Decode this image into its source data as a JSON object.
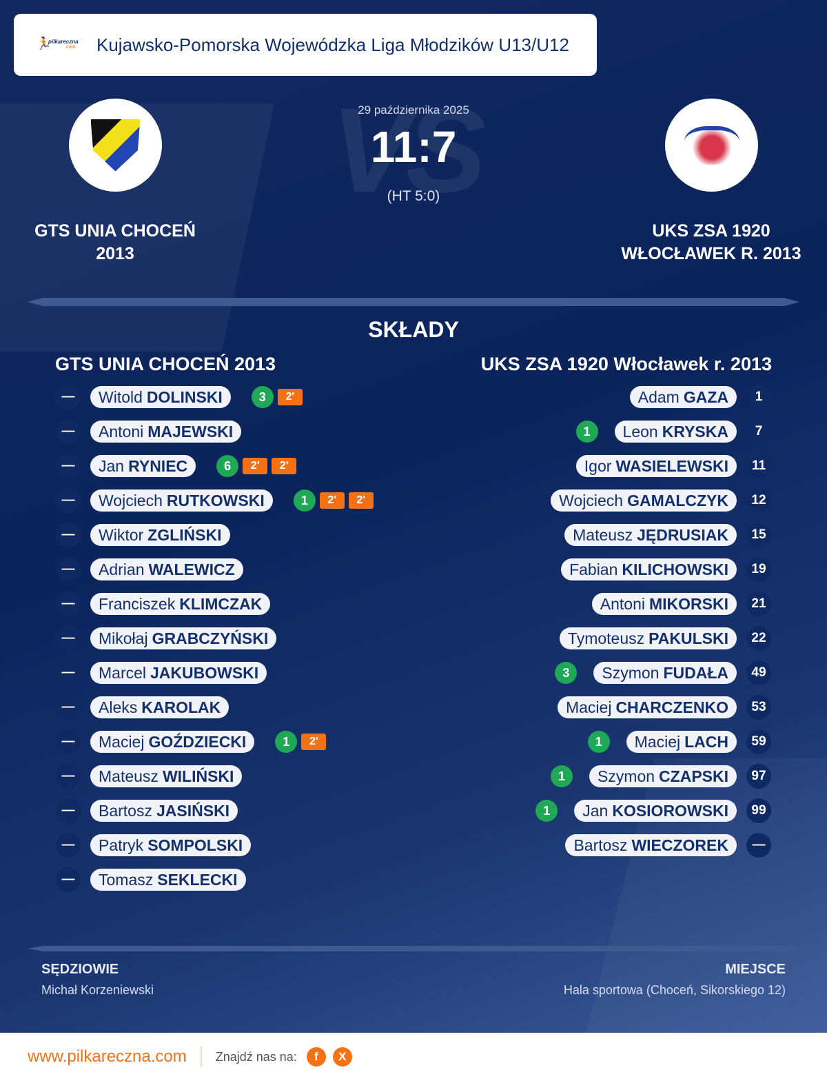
{
  "header": {
    "title": "Kujawsko-Pomorska Wojewódzka Liga Młodzików U13/U12",
    "logo_text": "pilkareczna",
    "logo_sub": ".com"
  },
  "match": {
    "date": "29 października 2025",
    "score": "11:7",
    "halftime": "(HT 5:0)",
    "vs": "VS"
  },
  "home": {
    "name_line1": "GTS UNIA CHOCEŃ",
    "name_line2": "2013",
    "squad_title": "GTS UNIA CHOCEŃ 2013",
    "players": [
      {
        "num": "—",
        "first": "Witold",
        "last": "DOLINSKI",
        "goals": "3",
        "pens": [
          "2'"
        ]
      },
      {
        "num": "—",
        "first": "Antoni",
        "last": "MAJEWSKI",
        "goals": "",
        "pens": []
      },
      {
        "num": "—",
        "first": "Jan",
        "last": "RYNIEC",
        "goals": "6",
        "pens": [
          "2'",
          "2'"
        ]
      },
      {
        "num": "—",
        "first": "Wojciech",
        "last": "RUTKOWSKI",
        "goals": "1",
        "pens": [
          "2'",
          "2'"
        ]
      },
      {
        "num": "—",
        "first": "Wiktor",
        "last": "ZGLIŃSKI",
        "goals": "",
        "pens": []
      },
      {
        "num": "—",
        "first": "Adrian",
        "last": "WALEWICZ",
        "goals": "",
        "pens": []
      },
      {
        "num": "—",
        "first": "Franciszek",
        "last": "KLIMCZAK",
        "goals": "",
        "pens": []
      },
      {
        "num": "—",
        "first": "Mikołaj",
        "last": "GRABCZYŃSKI",
        "goals": "",
        "pens": []
      },
      {
        "num": "—",
        "first": "Marcel",
        "last": "JAKUBOWSKI",
        "goals": "",
        "pens": []
      },
      {
        "num": "—",
        "first": "Aleks",
        "last": "KAROLAK",
        "goals": "",
        "pens": []
      },
      {
        "num": "—",
        "first": "Maciej",
        "last": "GOŹDZIECKI",
        "goals": "1",
        "pens": [
          "2'"
        ]
      },
      {
        "num": "—",
        "first": "Mateusz",
        "last": "WILIŃSKI",
        "goals": "",
        "pens": []
      },
      {
        "num": "—",
        "first": "Bartosz",
        "last": "JASIŃSKI",
        "goals": "",
        "pens": []
      },
      {
        "num": "—",
        "first": "Patryk",
        "last": "SOMPOLSKI",
        "goals": "",
        "pens": []
      },
      {
        "num": "—",
        "first": "Tomasz",
        "last": "SEKLECKI",
        "goals": "",
        "pens": []
      }
    ]
  },
  "away": {
    "name_line1": "UKS ZSA 1920",
    "name_line2": "WŁOCŁAWEK R. 2013",
    "squad_title": "UKS ZSA 1920 Włocławek r. 2013",
    "players": [
      {
        "num": "1",
        "first": "Adam",
        "last": "GAZA",
        "goals": ""
      },
      {
        "num": "7",
        "first": "Leon",
        "last": "KRYSKA",
        "goals": "1"
      },
      {
        "num": "11",
        "first": "Igor",
        "last": "WASIELEWSKI",
        "goals": ""
      },
      {
        "num": "12",
        "first": "Wojciech",
        "last": "GAMALCZYK",
        "goals": ""
      },
      {
        "num": "15",
        "first": "Mateusz",
        "last": "JĘDRUSIAK",
        "goals": ""
      },
      {
        "num": "19",
        "first": "Fabian",
        "last": "KILICHOWSKI",
        "goals": ""
      },
      {
        "num": "21",
        "first": "Antoni",
        "last": "MIKORSKI",
        "goals": ""
      },
      {
        "num": "22",
        "first": "Tymoteusz",
        "last": "PAKULSKI",
        "goals": ""
      },
      {
        "num": "49",
        "first": "Szymon",
        "last": "FUDAŁA",
        "goals": "3"
      },
      {
        "num": "53",
        "first": "Maciej",
        "last": "CHARCZENKO",
        "goals": ""
      },
      {
        "num": "59",
        "first": "Maciej",
        "last": "LACH",
        "goals": "1"
      },
      {
        "num": "97",
        "first": "Szymon",
        "last": "CZAPSKI",
        "goals": "1"
      },
      {
        "num": "99",
        "first": "Jan",
        "last": "KOSIOROWSKI",
        "goals": "1"
      },
      {
        "num": "—",
        "first": "Bartosz",
        "last": "WIECZOREK",
        "goals": ""
      }
    ]
  },
  "squads_heading": "SKŁADY",
  "referees": {
    "label": "SĘDZIOWIE",
    "value": "Michał Korzeniewski"
  },
  "venue": {
    "label": "MIEJSCE",
    "value": "Hala sportowa (Choceń, Sikorskiego 12)"
  },
  "footer": {
    "site": "www.pilkareczna.com",
    "find": "Znajdź nas na:",
    "social": [
      {
        "icon": "facebook-icon",
        "glyph": "f"
      },
      {
        "icon": "x-icon",
        "glyph": "X"
      }
    ]
  },
  "colors": {
    "goal": "#1fa855",
    "penalty": "#f47216",
    "navy": "#0b245c"
  }
}
